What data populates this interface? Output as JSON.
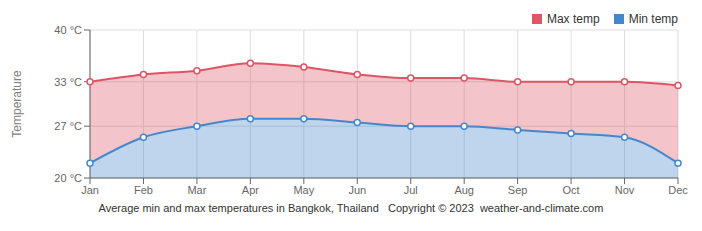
{
  "chart_data": {
    "type": "area",
    "title": "Average min and max temperatures in Bangkok, Thailand",
    "annotations": [
      "Copyright © 2023  weather-and-climate.com"
    ],
    "y_label": "Temperature",
    "categories": [
      "Jan",
      "Feb",
      "Mar",
      "Apr",
      "May",
      "Jun",
      "Jul",
      "Aug",
      "Sep",
      "Oct",
      "Nov",
      "Dec"
    ],
    "series": [
      {
        "name": "Max temp",
        "color": "#dd5566",
        "marker": "circle",
        "values": [
          33,
          34,
          34.5,
          35.5,
          35,
          34,
          33.5,
          33.5,
          33,
          33,
          33,
          32.5
        ]
      },
      {
        "name": "Min temp",
        "color": "#4488cc",
        "marker": "circle",
        "values": [
          22,
          25.5,
          27,
          28,
          28,
          27.5,
          27,
          27,
          26.5,
          26,
          25.5,
          22
        ]
      }
    ],
    "ylim": [
      20,
      40
    ],
    "yticks": [
      {
        "value": 20,
        "label": "20 °C"
      },
      {
        "value": 27,
        "label": "27 °C"
      },
      {
        "value": 33,
        "label": "33 °C"
      },
      {
        "value": 40,
        "label": "40 °C"
      }
    ],
    "grid": true,
    "legend": "upper right"
  }
}
